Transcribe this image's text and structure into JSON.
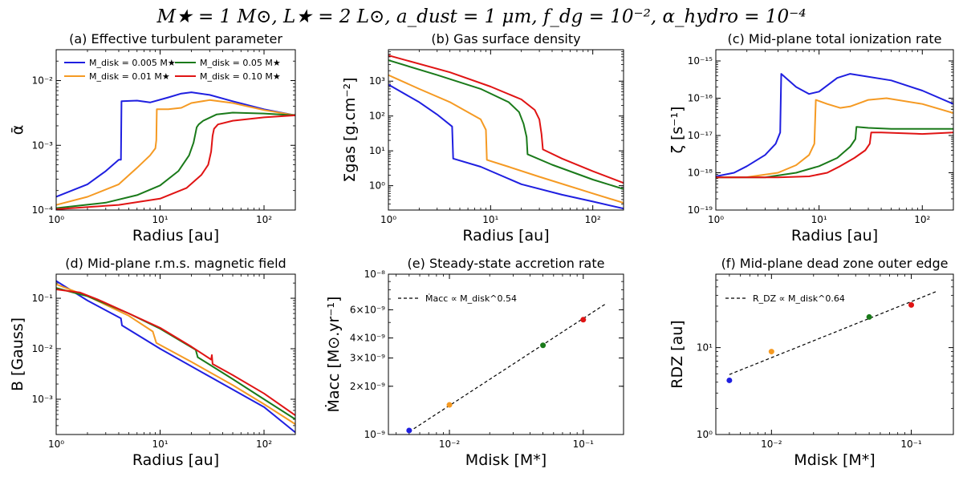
{
  "figure_title": "M★ = 1 M⊙, L★ = 2 L⊙, a_dust = 1 μm, f_dg = 10⁻², α_hydro = 10⁻⁴",
  "colors": {
    "blue": "#1f1fe0",
    "orange": "#f59a23",
    "green": "#1a7a1a",
    "red": "#e01414",
    "fit": "#000000"
  },
  "chart_data": [
    {
      "id": "a",
      "type": "line",
      "title": "(a) Effective turbulent parameter",
      "xlabel": "Radius [au]",
      "ylabel": "ᾱ",
      "xscale": "log",
      "yscale": "log",
      "xlim": [
        1,
        200
      ],
      "ylim": [
        0.0001,
        0.03
      ],
      "xticks": [
        {
          "v": 1,
          "label": "10⁰"
        },
        {
          "v": 10,
          "label": "10¹"
        },
        {
          "v": 100,
          "label": "10²"
        }
      ],
      "yticks": [
        {
          "v": 0.0001,
          "label": "10⁻⁴"
        },
        {
          "v": 0.001,
          "label": "10⁻³"
        },
        {
          "v": 0.01,
          "label": "10⁻²"
        }
      ],
      "legend": {
        "position": "upper-left",
        "columns": 2
      },
      "series": [
        {
          "name": "M_disk = 0.005 M★",
          "color": "blue",
          "x": [
            1,
            2,
            3,
            4,
            4.2,
            4.25,
            6,
            8,
            12,
            16,
            20,
            30,
            50,
            100,
            200
          ],
          "y": [
            0.00016,
            0.00025,
            0.0004,
            0.0006,
            0.0006,
            0.0048,
            0.0049,
            0.0046,
            0.0055,
            0.0063,
            0.0066,
            0.006,
            0.0048,
            0.0036,
            0.0029
          ]
        },
        {
          "name": "M_disk = 0.01 M★",
          "color": "orange",
          "x": [
            1,
            2,
            4,
            6,
            8,
            9,
            9.2,
            9.3,
            12,
            16,
            20,
            30,
            50,
            100,
            200
          ],
          "y": [
            0.00012,
            0.00016,
            0.00025,
            0.00045,
            0.0007,
            0.0009,
            0.0012,
            0.0036,
            0.0036,
            0.0038,
            0.0045,
            0.005,
            0.0045,
            0.0035,
            0.0029
          ]
        },
        {
          "name": "M_disk = 0.05 M★",
          "color": "green",
          "x": [
            1,
            3,
            6,
            10,
            15,
            19,
            21,
            22,
            22.5,
            23.5,
            26,
            35,
            50,
            100,
            200
          ],
          "y": [
            0.000107,
            0.00013,
            0.00017,
            0.00024,
            0.0004,
            0.0007,
            0.0011,
            0.0016,
            0.0019,
            0.0021,
            0.0024,
            0.003,
            0.0032,
            0.0031,
            0.0029
          ]
        },
        {
          "name": "M_disk = 0.10 M★",
          "color": "red",
          "x": [
            1,
            4,
            10,
            18,
            25,
            29,
            31,
            32,
            33,
            36,
            50,
            100,
            200
          ],
          "y": [
            0.000103,
            0.00012,
            0.00015,
            0.00022,
            0.00035,
            0.0005,
            0.0008,
            0.0014,
            0.0018,
            0.0021,
            0.0024,
            0.0027,
            0.0029
          ]
        }
      ]
    },
    {
      "id": "b",
      "type": "line",
      "title": "(b) Gas surface density",
      "xlabel": "Radius [au]",
      "ylabel": "Σgas [g.cm⁻²]",
      "xscale": "log",
      "yscale": "log",
      "xlim": [
        1,
        200
      ],
      "ylim": [
        0.2,
        8000
      ],
      "xticks": [
        {
          "v": 1,
          "label": "10⁰"
        },
        {
          "v": 10,
          "label": "10¹"
        },
        {
          "v": 100,
          "label": "10²"
        }
      ],
      "yticks": [
        {
          "v": 1,
          "label": "10⁰"
        },
        {
          "v": 10,
          "label": "10¹"
        },
        {
          "v": 100,
          "label": "10²"
        },
        {
          "v": 1000,
          "label": "10³"
        }
      ],
      "series": [
        {
          "name": "M_disk = 0.005 M★",
          "color": "blue",
          "x": [
            1,
            2,
            3,
            4.2,
            4.3,
            8,
            20,
            50,
            100,
            200
          ],
          "y": [
            800,
            250,
            110,
            50,
            6,
            3.5,
            1.1,
            0.55,
            0.35,
            0.22
          ]
        },
        {
          "name": "M_disk = 0.01 M★",
          "color": "orange",
          "x": [
            1,
            2,
            4,
            8,
            9,
            9.2,
            15,
            30,
            100,
            200
          ],
          "y": [
            1500,
            600,
            250,
            80,
            40,
            5.5,
            3.5,
            1.8,
            0.6,
            0.32
          ]
        },
        {
          "name": "M_disk = 0.05 M★",
          "color": "green",
          "x": [
            1,
            3,
            8,
            15,
            19,
            21,
            22.5,
            23,
            40,
            100,
            200
          ],
          "y": [
            4000,
            1500,
            600,
            250,
            130,
            60,
            25,
            8,
            4,
            1.5,
            0.8
          ]
        },
        {
          "name": "M_disk = 0.10 M★",
          "color": "red",
          "x": [
            1,
            4,
            10,
            20,
            27,
            30,
            31.5,
            32.5,
            50,
            100,
            200
          ],
          "y": [
            5500,
            1800,
            700,
            300,
            150,
            80,
            30,
            11,
            6,
            2.6,
            1.2
          ]
        }
      ]
    },
    {
      "id": "c",
      "type": "line",
      "title": "(c) Mid-plane total ionization rate",
      "xlabel": "Radius [au]",
      "ylabel": "ζ [s⁻¹]",
      "xscale": "log",
      "yscale": "log",
      "xlim": [
        1,
        200
      ],
      "ylim": [
        1e-19,
        2e-15
      ],
      "xticks": [
        {
          "v": 1,
          "label": "10⁰"
        },
        {
          "v": 10,
          "label": "10¹"
        },
        {
          "v": 100,
          "label": "10²"
        }
      ],
      "yticks": [
        {
          "v": 1e-19,
          "label": "10⁻¹⁹"
        },
        {
          "v": 1e-18,
          "label": "10⁻¹⁸"
        },
        {
          "v": 1e-17,
          "label": "10⁻¹⁷"
        },
        {
          "v": 1e-16,
          "label": "10⁻¹⁶"
        },
        {
          "v": 1e-15,
          "label": "10⁻¹⁵"
        }
      ],
      "series": [
        {
          "name": "M_disk = 0.005 M★",
          "color": "blue",
          "x": [
            1,
            1.5,
            2,
            3,
            3.8,
            4.2,
            4.3,
            6,
            8,
            10,
            15,
            20,
            50,
            100,
            200
          ],
          "y": [
            8e-19,
            1e-18,
            1.5e-18,
            3e-18,
            6e-18,
            1.2e-17,
            4.5e-16,
            2e-16,
            1.3e-16,
            1.5e-16,
            3.5e-16,
            4.5e-16,
            3e-16,
            1.6e-16,
            7e-17
          ]
        },
        {
          "name": "M_disk = 0.01 M★",
          "color": "orange",
          "x": [
            1,
            2,
            4,
            6,
            8,
            9,
            9.3,
            12,
            16,
            20,
            30,
            45,
            100,
            200
          ],
          "y": [
            7.5e-19,
            7.6e-19,
            1e-18,
            1.6e-18,
            3e-18,
            6e-18,
            9e-17,
            7e-17,
            5.5e-17,
            6e-17,
            9e-17,
            1e-16,
            7e-17,
            4e-17
          ]
        },
        {
          "name": "M_disk = 0.05 M★",
          "color": "green",
          "x": [
            1,
            3,
            6,
            10,
            15,
            20,
            22.5,
            23,
            30,
            50,
            100,
            200
          ],
          "y": [
            7.5e-19,
            7.5e-19,
            1e-18,
            1.5e-18,
            2.5e-18,
            5e-18,
            8e-18,
            1.7e-17,
            1.6e-17,
            1.5e-17,
            1.5e-17,
            1.5e-17
          ]
        },
        {
          "name": "M_disk = 0.10 M★",
          "color": "red",
          "x": [
            1,
            4,
            8,
            12,
            16,
            22,
            28,
            31,
            32,
            40,
            100,
            200
          ],
          "y": [
            7.5e-19,
            7.5e-19,
            8e-19,
            1e-18,
            1.5e-18,
            2.5e-18,
            4e-18,
            6e-18,
            1.2e-17,
            1.2e-17,
            1.1e-17,
            1.2e-17
          ]
        }
      ]
    },
    {
      "id": "d",
      "type": "line",
      "title": "(d) Mid-plane r.m.s. magnetic field",
      "xlabel": "Radius [au]",
      "ylabel": "B [Gauss]",
      "xscale": "log",
      "yscale": "log",
      "xlim": [
        1,
        200
      ],
      "ylim": [
        0.0002,
        0.3
      ],
      "xticks": [
        {
          "v": 1,
          "label": "10⁰"
        },
        {
          "v": 10,
          "label": "10¹"
        },
        {
          "v": 100,
          "label": "10²"
        }
      ],
      "yticks": [
        {
          "v": 0.001,
          "label": "10⁻³"
        },
        {
          "v": 0.01,
          "label": "10⁻²"
        },
        {
          "v": 0.1,
          "label": "10⁻¹"
        }
      ],
      "series": [
        {
          "name": "M_disk = 0.005 M★",
          "color": "blue",
          "x": [
            1,
            2,
            4.2,
            4.3,
            10,
            30,
            100,
            200
          ],
          "y": [
            0.22,
            0.09,
            0.04,
            0.029,
            0.01,
            0.0028,
            0.0007,
            0.00022
          ]
        },
        {
          "name": "M_disk = 0.01 M★",
          "color": "orange",
          "x": [
            1,
            2,
            5,
            8.5,
            9.2,
            20,
            50,
            100,
            200
          ],
          "y": [
            0.19,
            0.11,
            0.045,
            0.022,
            0.013,
            0.0055,
            0.0019,
            0.0008,
            0.00032
          ]
        },
        {
          "name": "M_disk = 0.05 M★",
          "color": "green",
          "x": [
            1,
            1.7,
            2,
            5,
            10,
            22,
            23,
            50,
            100,
            200
          ],
          "y": [
            0.16,
            0.12,
            0.11,
            0.05,
            0.025,
            0.0095,
            0.0068,
            0.0025,
            0.001,
            0.0004
          ]
        },
        {
          "name": "M_disk = 0.10 M★",
          "color": "red",
          "x": [
            1,
            1.7,
            2.5,
            5,
            10,
            20,
            31,
            31.5,
            32,
            50,
            100,
            200
          ],
          "y": [
            0.15,
            0.13,
            0.095,
            0.05,
            0.026,
            0.011,
            0.0061,
            0.0075,
            0.005,
            0.003,
            0.0013,
            0.00048
          ]
        }
      ]
    },
    {
      "id": "e",
      "type": "scatter",
      "title": "(e) Steady-state accretion rate",
      "xlabel": "Mdisk [M*]",
      "ylabel": "Ṁacc [M⊙.yr⁻¹]",
      "xscale": "log",
      "yscale": "log",
      "xlim": [
        0.0035,
        0.2
      ],
      "ylim": [
        1e-09,
        1e-08
      ],
      "xticks": [
        {
          "v": 0.01,
          "label": "10⁻²"
        },
        {
          "v": 0.1,
          "label": "10⁻¹"
        }
      ],
      "yticks": [
        {
          "v": 1e-09,
          "label": "10⁻⁹"
        },
        {
          "v": 2e-09,
          "label": "2×10⁻⁹"
        },
        {
          "v": 3e-09,
          "label": "3×10⁻⁹"
        },
        {
          "v": 4e-09,
          "label": "4×10⁻⁹"
        },
        {
          "v": 6e-09,
          "label": "6×10⁻⁹"
        },
        {
          "v": 1e-08,
          "label": "10⁻⁸"
        }
      ],
      "legend": {
        "position": "upper-left",
        "label": "Ṁacc ∝ M_disk^0.54"
      },
      "points": [
        {
          "x": 0.005,
          "y": 1.06e-09,
          "color": "blue"
        },
        {
          "x": 0.01,
          "y": 1.53e-09,
          "color": "orange"
        },
        {
          "x": 0.05,
          "y": 3.6e-09,
          "color": "green"
        },
        {
          "x": 0.1,
          "y": 5.2e-09,
          "color": "red"
        }
      ],
      "fit": {
        "exponent": 0.54,
        "x": [
          0.005,
          0.15
        ],
        "y": [
          1.04e-09,
          6.6e-09
        ]
      }
    },
    {
      "id": "f",
      "type": "scatter",
      "title": "(f) Mid-plane dead zone outer edge",
      "xlabel": "Mdisk [M*]",
      "ylabel": "RDZ [au]",
      "xscale": "log",
      "yscale": "log",
      "xlim": [
        0.004,
        0.2
      ],
      "ylim": [
        1,
        70
      ],
      "xticks": [
        {
          "v": 0.01,
          "label": "10⁻²"
        },
        {
          "v": 0.1,
          "label": "10⁻¹"
        }
      ],
      "yticks": [
        {
          "v": 1,
          "label": "10⁰"
        },
        {
          "v": 10,
          "label": "10¹"
        }
      ],
      "legend": {
        "position": "upper-left",
        "label": "R_DZ ∝ M_disk^0.64"
      },
      "points": [
        {
          "x": 0.005,
          "y": 4.2,
          "color": "blue"
        },
        {
          "x": 0.01,
          "y": 9.0,
          "color": "orange"
        },
        {
          "x": 0.05,
          "y": 22.5,
          "color": "green"
        },
        {
          "x": 0.1,
          "y": 31.0,
          "color": "red"
        }
      ],
      "fit": {
        "exponent": 0.64,
        "x": [
          0.005,
          0.15
        ],
        "y": [
          4.9,
          44.0
        ]
      }
    }
  ]
}
